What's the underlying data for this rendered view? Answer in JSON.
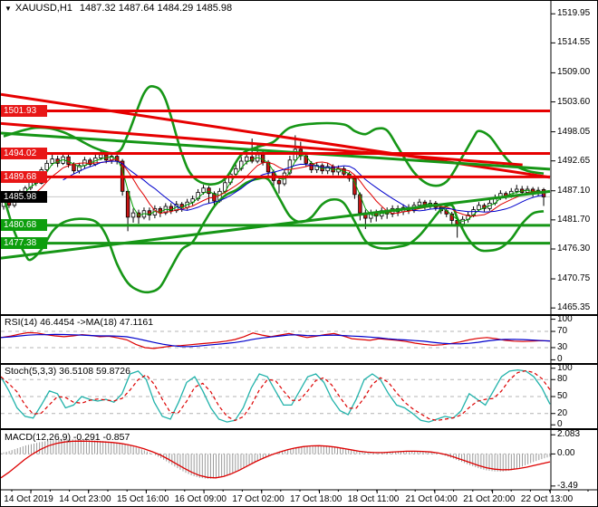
{
  "window": {
    "dropdown_icon": "▼",
    "title_symbol": "XAUUSD,H1",
    "title_ohlc": "1487.32 1487.64 1484.29 1485.98"
  },
  "colors": {
    "bull_body": "#ffffff",
    "bear_body": "#c81414",
    "wick": "#000000",
    "thick_red": "#e60000",
    "thick_green": "#169616",
    "ma_green": "#00a000",
    "ma_red": "#e00000",
    "ma_blue": "#0000cc",
    "rsi_line": "#dd0000",
    "rsi_ma": "#0000cc",
    "stoch_k": "#20b2aa",
    "stoch_d": "#dd0000",
    "macd_hist": "#9a9a9a",
    "macd_signal": "#dd0000",
    "badge_red": "#e81717",
    "badge_green": "#0d9e0d",
    "badge_black": "#000000",
    "level_dash": "#b4b4b4",
    "current_line": "#c8c8c8",
    "border": "#000000"
  },
  "panes": {
    "rsi": {
      "label": "RSI(14) 46.4454  ->MA(18) 47.1161",
      "scale": [
        100,
        70,
        30,
        0
      ],
      "levels": [
        70,
        30
      ]
    },
    "stoch": {
      "label": "Stoch(5,3,3) 36.5108 59.8726",
      "scale": [
        100,
        80,
        50,
        20,
        0
      ],
      "levels": [
        80,
        50,
        20
      ]
    },
    "macd": {
      "label": "MACD(12,26,9) -0.291 -0.857",
      "scale": [
        {
          "text": "2.083",
          "v": 2.083
        },
        {
          "text": "0.00",
          "v": 0
        },
        {
          "text": "-3.49",
          "v": -3.49
        }
      ],
      "levels": [
        0
      ]
    }
  },
  "chart_data": {
    "type": "candlestick",
    "title": "XAUUSD,H1",
    "symbol": "XAUUSD",
    "timeframe": "H1",
    "current_bar_ohlc": [
      1487.32,
      1487.64,
      1484.29,
      1485.98
    ],
    "y_range": [
      1464.2,
      1521.0
    ],
    "price_ticks": [
      1519.95,
      1514.55,
      1509.0,
      1503.6,
      1498.05,
      1492.65,
      1487.1,
      1481.7,
      1476.3,
      1470.75,
      1465.35
    ],
    "time_labels": [
      "14 Oct 2019",
      "14 Oct 23:00",
      "15 Oct 16:00",
      "16 Oct 09:00",
      "17 Oct 02:00",
      "17 Oct 18:00",
      "18 Oct 11:00",
      "21 Oct 04:00",
      "21 Oct 20:00",
      "22 Oct 13:00"
    ],
    "levels": {
      "resistance": [
        1501.93,
        1494.02,
        1489.68
      ],
      "support": [
        1480.68,
        1477.38
      ],
      "current_price": 1485.98
    },
    "trendlines": [
      {
        "name": "descending-resistance-1",
        "color": "red",
        "x0": 0.0,
        "p0": 1505.0,
        "x1": 1.0,
        "p1": 1489.6
      },
      {
        "name": "descending-resistance-2",
        "color": "red",
        "x0": 0.0,
        "p0": 1499.6,
        "x1": 0.95,
        "p1": 1491.9
      },
      {
        "name": "descending-channel-green",
        "color": "green",
        "x0": 0.0,
        "p0": 1497.8,
        "x1": 1.0,
        "p1": 1491.1
      },
      {
        "name": "ascending-support-green",
        "color": "green",
        "x0": 0.0,
        "p0": 1474.6,
        "x1": 1.0,
        "p1": 1487.0
      }
    ],
    "candles": [
      [
        1484.2,
        1485.4,
        1483.6,
        1485.0
      ],
      [
        1485.0,
        1485.6,
        1483.9,
        1484.4
      ],
      [
        1484.4,
        1486.4,
        1484.0,
        1486.0
      ],
      [
        1486.0,
        1487.3,
        1485.5,
        1486.8
      ],
      [
        1486.8,
        1488.0,
        1486.2,
        1487.6
      ],
      [
        1487.6,
        1489.6,
        1487.2,
        1489.2
      ],
      [
        1489.2,
        1490.0,
        1488.0,
        1488.5
      ],
      [
        1488.5,
        1491.5,
        1488.3,
        1491.0
      ],
      [
        1491.0,
        1492.8,
        1490.6,
        1492.2
      ],
      [
        1492.2,
        1494.0,
        1491.8,
        1493.0
      ],
      [
        1493.0,
        1493.6,
        1491.5,
        1492.2
      ],
      [
        1492.2,
        1494.2,
        1491.9,
        1493.4
      ],
      [
        1493.4,
        1493.8,
        1491.4,
        1492.0
      ],
      [
        1492.0,
        1492.4,
        1490.2,
        1490.8
      ],
      [
        1490.8,
        1492.3,
        1490.3,
        1491.8
      ],
      [
        1491.8,
        1493.4,
        1491.2,
        1492.8
      ],
      [
        1492.8,
        1493.2,
        1491.6,
        1492.0
      ],
      [
        1492.0,
        1493.9,
        1491.7,
        1493.2
      ],
      [
        1493.2,
        1494.6,
        1492.8,
        1493.8
      ],
      [
        1493.8,
        1494.3,
        1492.2,
        1492.8
      ],
      [
        1492.8,
        1494.1,
        1492.1,
        1493.5
      ],
      [
        1493.5,
        1494.0,
        1492.0,
        1492.6
      ],
      [
        1492.6,
        1493.0,
        1486.2,
        1487.0
      ],
      [
        1487.0,
        1487.4,
        1479.6,
        1482.2
      ],
      [
        1482.2,
        1483.8,
        1481.2,
        1483.0
      ],
      [
        1483.0,
        1483.6,
        1481.0,
        1482.2
      ],
      [
        1482.2,
        1484.0,
        1481.8,
        1483.4
      ],
      [
        1483.4,
        1484.0,
        1481.6,
        1482.6
      ],
      [
        1482.6,
        1484.4,
        1482.0,
        1483.8
      ],
      [
        1483.8,
        1484.2,
        1482.2,
        1483.0
      ],
      [
        1483.0,
        1484.8,
        1482.6,
        1484.2
      ],
      [
        1484.2,
        1484.8,
        1482.8,
        1483.4
      ],
      [
        1483.4,
        1485.2,
        1483.0,
        1484.6
      ],
      [
        1484.6,
        1485.0,
        1483.2,
        1484.0
      ],
      [
        1484.0,
        1485.6,
        1483.6,
        1485.0
      ],
      [
        1485.0,
        1486.2,
        1484.4,
        1485.6
      ],
      [
        1485.6,
        1487.4,
        1485.2,
        1486.8
      ],
      [
        1486.8,
        1488.2,
        1486.4,
        1487.6
      ],
      [
        1487.6,
        1488.0,
        1484.8,
        1486.6
      ],
      [
        1486.6,
        1487.0,
        1484.4,
        1485.2
      ],
      [
        1485.2,
        1487.6,
        1484.9,
        1487.0
      ],
      [
        1487.0,
        1489.2,
        1486.6,
        1488.6
      ],
      [
        1488.6,
        1490.8,
        1488.2,
        1490.2
      ],
      [
        1490.2,
        1492.0,
        1489.8,
        1491.2
      ],
      [
        1491.2,
        1493.4,
        1490.8,
        1492.6
      ],
      [
        1492.6,
        1495.0,
        1492.0,
        1493.4
      ],
      [
        1493.4,
        1496.8,
        1492.2,
        1492.6
      ],
      [
        1492.6,
        1495.6,
        1492.2,
        1493.8
      ],
      [
        1493.8,
        1494.4,
        1491.8,
        1492.4
      ],
      [
        1492.4,
        1492.8,
        1489.8,
        1490.6
      ],
      [
        1490.6,
        1491.0,
        1487.6,
        1489.0
      ],
      [
        1489.0,
        1489.6,
        1486.6,
        1488.4
      ],
      [
        1488.4,
        1491.0,
        1488.0,
        1490.4
      ],
      [
        1490.4,
        1493.6,
        1490.0,
        1492.8
      ],
      [
        1492.8,
        1497.4,
        1492.4,
        1494.8
      ],
      [
        1494.8,
        1496.2,
        1492.8,
        1493.6
      ],
      [
        1493.6,
        1494.2,
        1491.6,
        1492.2
      ],
      [
        1492.2,
        1492.6,
        1490.4,
        1491.0
      ],
      [
        1491.0,
        1492.4,
        1490.4,
        1491.8
      ],
      [
        1491.8,
        1492.2,
        1490.2,
        1490.8
      ],
      [
        1490.8,
        1492.2,
        1490.2,
        1491.6
      ],
      [
        1491.6,
        1492.0,
        1490.0,
        1490.6
      ],
      [
        1490.6,
        1491.8,
        1490.0,
        1491.2
      ],
      [
        1491.2,
        1491.6,
        1489.6,
        1490.2
      ],
      [
        1490.2,
        1490.6,
        1488.8,
        1489.4
      ],
      [
        1489.4,
        1489.8,
        1485.6,
        1486.4
      ],
      [
        1486.4,
        1486.8,
        1481.6,
        1483.0
      ],
      [
        1483.0,
        1483.6,
        1480.0,
        1482.0
      ],
      [
        1482.0,
        1483.6,
        1481.2,
        1483.0
      ],
      [
        1483.0,
        1483.6,
        1481.4,
        1482.4
      ],
      [
        1482.4,
        1484.0,
        1481.8,
        1483.4
      ],
      [
        1483.4,
        1484.0,
        1481.9,
        1482.8
      ],
      [
        1482.8,
        1484.4,
        1482.2,
        1483.8
      ],
      [
        1483.8,
        1484.4,
        1482.4,
        1483.2
      ],
      [
        1483.2,
        1484.6,
        1482.6,
        1484.0
      ],
      [
        1484.0,
        1484.6,
        1482.8,
        1483.4
      ],
      [
        1483.4,
        1485.0,
        1483.0,
        1484.4
      ],
      [
        1484.4,
        1485.6,
        1483.8,
        1485.0
      ],
      [
        1485.0,
        1485.4,
        1483.6,
        1484.2
      ],
      [
        1484.2,
        1485.4,
        1483.8,
        1484.8
      ],
      [
        1484.8,
        1485.2,
        1483.4,
        1484.0
      ],
      [
        1484.0,
        1484.4,
        1482.8,
        1483.4
      ],
      [
        1483.4,
        1483.8,
        1482.2,
        1482.8
      ],
      [
        1482.8,
        1483.2,
        1480.6,
        1481.6
      ],
      [
        1481.6,
        1482.0,
        1478.4,
        1480.9
      ],
      [
        1480.9,
        1482.4,
        1480.2,
        1481.8
      ],
      [
        1481.8,
        1483.2,
        1481.2,
        1482.6
      ],
      [
        1482.6,
        1484.2,
        1482.2,
        1483.6
      ],
      [
        1483.6,
        1485.0,
        1483.2,
        1484.4
      ],
      [
        1484.4,
        1484.8,
        1483.2,
        1483.8
      ],
      [
        1483.8,
        1485.4,
        1483.4,
        1484.8
      ],
      [
        1484.8,
        1486.4,
        1484.4,
        1485.8
      ],
      [
        1485.8,
        1487.2,
        1485.4,
        1486.6
      ],
      [
        1486.6,
        1487.0,
        1485.5,
        1486.0
      ],
      [
        1486.0,
        1487.6,
        1485.8,
        1487.0
      ],
      [
        1487.0,
        1488.2,
        1486.6,
        1487.4
      ],
      [
        1487.4,
        1488.0,
        1486.2,
        1486.8
      ],
      [
        1486.8,
        1488.0,
        1486.4,
        1487.4
      ],
      [
        1487.4,
        1487.8,
        1486.0,
        1486.6
      ],
      [
        1486.6,
        1487.8,
        1486.2,
        1487.2
      ],
      [
        1487.32,
        1487.64,
        1484.29,
        1485.98
      ]
    ],
    "bollinger_upper_keypoints": [
      [
        0,
        1497.2
      ],
      [
        6,
        1498.8
      ],
      [
        11,
        1498.0
      ],
      [
        17,
        1495.0
      ],
      [
        21,
        1494.2
      ],
      [
        23,
        1497.5
      ],
      [
        26,
        1505.2
      ],
      [
        28,
        1506.4
      ],
      [
        30,
        1504.0
      ],
      [
        33,
        1494.0
      ],
      [
        35,
        1489.8
      ],
      [
        38,
        1488.3
      ],
      [
        41,
        1489.3
      ],
      [
        44,
        1493.8
      ],
      [
        47,
        1495.2
      ],
      [
        50,
        1496.2
      ],
      [
        53,
        1498.8
      ],
      [
        58,
        1499.6
      ],
      [
        63,
        1499.4
      ],
      [
        65,
        1498.2
      ],
      [
        67,
        1497.6
      ],
      [
        69,
        1498.6
      ],
      [
        71,
        1498.3
      ],
      [
        73,
        1495.2
      ],
      [
        76,
        1490.5
      ],
      [
        79,
        1488.2
      ],
      [
        82,
        1488.8
      ],
      [
        85,
        1493.5
      ],
      [
        87,
        1497.0
      ],
      [
        88,
        1498.2
      ],
      [
        90,
        1497.2
      ],
      [
        92,
        1494.5
      ],
      [
        94,
        1492.2
      ],
      [
        97,
        1490.8
      ],
      [
        100,
        1490.3
      ]
    ],
    "bollinger_lower_keypoints": [
      [
        0,
        1486.0
      ],
      [
        2,
        1479.5
      ],
      [
        4,
        1475.3
      ],
      [
        5,
        1474.3
      ],
      [
        7,
        1476.2
      ],
      [
        9,
        1479.5
      ],
      [
        11,
        1481.2
      ],
      [
        14,
        1481.9
      ],
      [
        17,
        1481.4
      ],
      [
        19,
        1478.8
      ],
      [
        21,
        1473.5
      ],
      [
        23,
        1470.0
      ],
      [
        25,
        1468.6
      ],
      [
        27,
        1468.3
      ],
      [
        29,
        1469.3
      ],
      [
        31,
        1472.8
      ],
      [
        33,
        1476.2
      ],
      [
        35,
        1477.6
      ],
      [
        37,
        1481.0
      ],
      [
        39,
        1484.2
      ],
      [
        41,
        1486.2
      ],
      [
        43,
        1487.2
      ],
      [
        45,
        1488.6
      ],
      [
        47,
        1489.3
      ],
      [
        49,
        1489.2
      ],
      [
        51,
        1485.8
      ],
      [
        53,
        1482.4
      ],
      [
        55,
        1481.3
      ],
      [
        57,
        1482.2
      ],
      [
        59,
        1484.6
      ],
      [
        61,
        1485.5
      ],
      [
        63,
        1484.8
      ],
      [
        65,
        1481.4
      ],
      [
        67,
        1477.8
      ],
      [
        69,
        1476.6
      ],
      [
        71,
        1476.4
      ],
      [
        73,
        1476.7
      ],
      [
        75,
        1477.2
      ],
      [
        77,
        1478.8
      ],
      [
        79,
        1481.2
      ],
      [
        81,
        1483.6
      ],
      [
        83,
        1484.4
      ],
      [
        84,
        1482.0
      ],
      [
        86,
        1478.2
      ],
      [
        88,
        1476.2
      ],
      [
        90,
        1476.0
      ],
      [
        92,
        1476.5
      ],
      [
        94,
        1478.2
      ],
      [
        96,
        1481.0
      ],
      [
        98,
        1482.9
      ],
      [
        100,
        1483.3
      ]
    ],
    "indicators": {
      "rsi": {
        "range": [
          0,
          100
        ],
        "values": [
          55,
          58,
          63,
          67,
          66,
          62,
          59,
          57,
          59,
          62,
          60,
          57,
          58,
          54,
          49,
          38,
          30,
          28,
          31,
          34,
          35,
          37,
          39,
          41,
          43,
          46,
          50,
          57,
          66,
          61,
          57,
          61,
          65,
          60,
          55,
          58,
          62,
          65,
          59,
          52,
          50,
          48,
          52,
          50,
          48,
          45,
          41,
          38,
          36,
          37,
          40,
          44,
          49,
          53,
          55,
          52,
          48,
          46,
          45,
          46,
          47,
          46.4
        ]
      },
      "stoch": {
        "range": [
          0,
          100
        ],
        "k": [
          85,
          60,
          30,
          15,
          12,
          35,
          60,
          55,
          30,
          35,
          50,
          45,
          42,
          45,
          40,
          55,
          90,
          95,
          80,
          40,
          15,
          10,
          40,
          75,
          85,
          60,
          30,
          10,
          5,
          8,
          30,
          65,
          90,
          85,
          60,
          35,
          35,
          60,
          85,
          90,
          75,
          45,
          25,
          18,
          45,
          80,
          90,
          80,
          55,
          35,
          30,
          20,
          8,
          5,
          10,
          15,
          12,
          25,
          55,
          45,
          35,
          60,
          85,
          95,
          97,
          95,
          85,
          65,
          36.5
        ]
      },
      "macd": {
        "range": [
          -3.49,
          2.083
        ],
        "histogram": [
          0.1,
          0.3,
          0.6,
          0.9,
          1.1,
          1.3,
          1.45,
          1.55,
          1.6,
          1.6,
          1.55,
          1.5,
          1.45,
          1.4,
          1.3,
          1.15,
          0.95,
          0.7,
          0.4,
          0.05,
          -0.4,
          -0.9,
          -1.45,
          -1.95,
          -2.35,
          -2.6,
          -2.7,
          -2.65,
          -2.45,
          -2.1,
          -1.7,
          -1.25,
          -0.8,
          -0.4,
          -0.05,
          0.25,
          0.5,
          0.7,
          0.85,
          0.92,
          0.92,
          0.85,
          0.72,
          0.55,
          0.4,
          0.28,
          0.2,
          0.18,
          0.2,
          0.25,
          0.3,
          0.33,
          0.32,
          0.27,
          0.18,
          0.02,
          -0.25,
          -0.55,
          -0.9,
          -1.25,
          -1.55,
          -1.78,
          -1.9,
          -1.92,
          -1.8,
          -1.55,
          -1.2,
          -0.85,
          -0.55,
          -0.291
        ],
        "signal": [
          -2.6,
          -2.0,
          -1.3,
          -0.6,
          0.0,
          0.5,
          0.9,
          1.15,
          1.3,
          1.38,
          1.4,
          1.38,
          1.35,
          1.3,
          1.25,
          1.15,
          1.0,
          0.8,
          0.55,
          0.25,
          -0.1,
          -0.55,
          -1.05,
          -1.55,
          -2.0,
          -2.35,
          -2.55,
          -2.6,
          -2.45,
          -2.15,
          -1.75,
          -1.3,
          -0.85,
          -0.45,
          -0.1,
          0.2,
          0.45,
          0.65,
          0.8,
          0.88,
          0.9,
          0.85,
          0.75,
          0.6,
          0.45,
          0.3,
          0.2,
          0.15,
          0.15,
          0.2,
          0.25,
          0.3,
          0.3,
          0.28,
          0.22,
          0.1,
          -0.08,
          -0.35,
          -0.65,
          -0.95,
          -1.25,
          -1.5,
          -1.65,
          -1.72,
          -1.7,
          -1.6,
          -1.45,
          -1.25,
          -1.05,
          -0.857
        ]
      }
    }
  }
}
